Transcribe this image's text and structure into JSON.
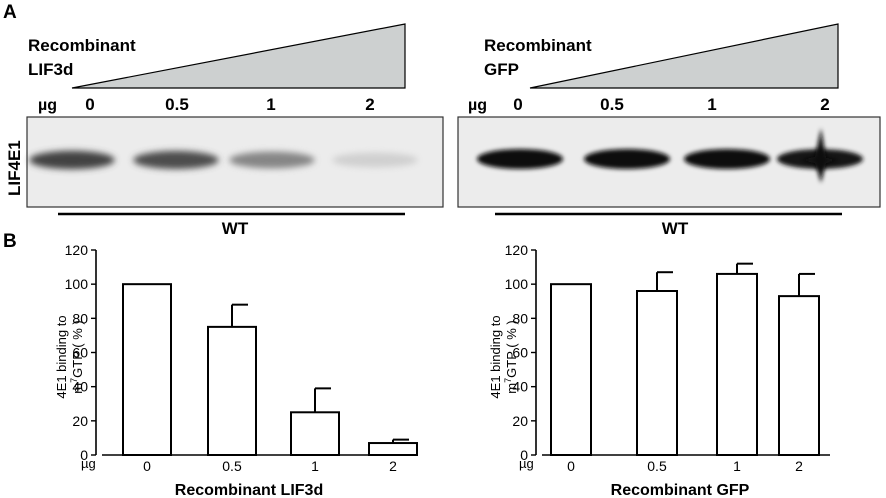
{
  "panel_a": {
    "letter": "A",
    "left": {
      "title_line1": "Recombinant",
      "title_line2": "LIF3d",
      "unit": "µg",
      "doses": [
        "0",
        "0.5",
        "1",
        "2"
      ],
      "strain": "WT",
      "band_intensity": [
        0.75,
        0.7,
        0.45,
        0.12
      ]
    },
    "right": {
      "title_line1": "Recombinant",
      "title_line2": "GFP",
      "unit": "µg",
      "doses": [
        "0",
        "0.5",
        "1",
        "2"
      ],
      "strain": "WT",
      "band_intensity": [
        1.0,
        1.0,
        1.0,
        0.95
      ]
    },
    "row_label": "LIF4E1",
    "ramp_color": "#cdd0d0",
    "blot_background": "#ececec"
  },
  "panel_b": {
    "letter": "B"
  },
  "chart_data": [
    {
      "type": "bar",
      "categories": [
        "0",
        "0.5",
        "1",
        "2"
      ],
      "values": [
        100,
        75,
        25,
        7
      ],
      "errors": [
        0,
        13,
        14,
        2
      ],
      "ylabel_line1": "4E1 binding to",
      "ylabel_line2_pre": "m",
      "ylabel_line2_sup": "7",
      "ylabel_line2_post": "GTP ( % )",
      "xlabel": "Recombinant LIF3d",
      "unit_label": "µg",
      "ylim": [
        0,
        120
      ],
      "yticks": [
        "0",
        "20",
        "40",
        "60",
        "80",
        "100",
        "120"
      ],
      "grid": false
    },
    {
      "type": "bar",
      "categories": [
        "0",
        "0.5",
        "1",
        "2"
      ],
      "values": [
        100,
        96,
        106,
        93
      ],
      "errors": [
        0,
        11,
        6,
        13
      ],
      "ylabel_line1": "4E1 binding to",
      "ylabel_line2_pre": "m",
      "ylabel_line2_sup": "7",
      "ylabel_line2_post": "GTP ( % )",
      "xlabel": "Recombinant GFP",
      "unit_label": "µg",
      "ylim": [
        0,
        120
      ],
      "yticks": [
        "0",
        "20",
        "40",
        "60",
        "80",
        "100",
        "120"
      ],
      "grid": false
    }
  ]
}
